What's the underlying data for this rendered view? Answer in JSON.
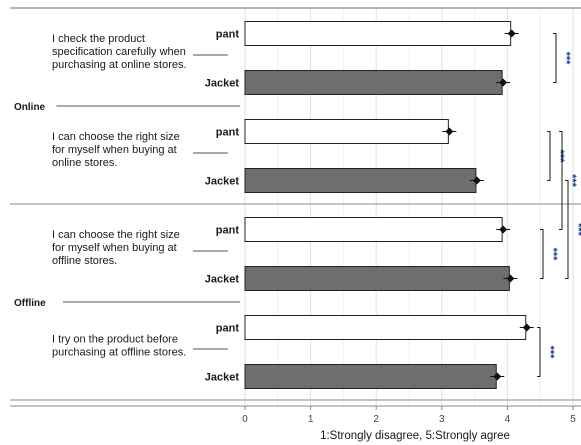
{
  "chart_data": {
    "type": "bar",
    "orientation": "horizontal",
    "xlabel": "1:Strongly disagree, 5:Strongly agree",
    "xlim": [
      0,
      5
    ],
    "xticks": [
      0,
      1,
      2,
      3,
      4,
      5
    ],
    "grid": true,
    "groups": [
      {
        "name": "Online",
        "questions": [
          {
            "text": [
              "I check the product",
              "specification carefully when",
              "purchasing at online stores."
            ],
            "bars": [
              {
                "category": "pant",
                "value": 4.05,
                "color": "#ffffff"
              },
              {
                "category": "Jacket",
                "value": 3.92,
                "color": "#6e6e6e"
              }
            ]
          },
          {
            "text": [
              "I can choose the right size",
              "for myself when buying at",
              "online stores."
            ],
            "bars": [
              {
                "category": "pant",
                "value": 3.1,
                "color": "#ffffff"
              },
              {
                "category": "Jacket",
                "value": 3.52,
                "color": "#6e6e6e"
              }
            ]
          }
        ]
      },
      {
        "name": "Offline",
        "questions": [
          {
            "text": [
              "I can choose the right size",
              "for myself when buying at",
              "offline stores."
            ],
            "bars": [
              {
                "category": "pant",
                "value": 3.92,
                "color": "#ffffff"
              },
              {
                "category": "Jacket",
                "value": 4.03,
                "color": "#6e6e6e"
              }
            ]
          },
          {
            "text": [
              "I try on the product before",
              "purchasing at offline stores."
            ],
            "bars": [
              {
                "category": "pant",
                "value": 4.28,
                "color": "#ffffff"
              },
              {
                "category": "Jacket",
                "value": 3.83,
                "color": "#6e6e6e"
              }
            ]
          }
        ]
      }
    ],
    "significance": [
      {
        "label": "***",
        "from": [
          0,
          0
        ],
        "to": [
          0,
          1
        ]
      },
      {
        "label": "***",
        "from": [
          1,
          0
        ],
        "to": [
          1,
          1
        ]
      },
      {
        "label": "***",
        "from": [
          2,
          0
        ],
        "to": [
          2,
          1
        ]
      },
      {
        "label": "***",
        "from": [
          3,
          0
        ],
        "to": [
          3,
          1
        ]
      },
      {
        "label": "***",
        "from": [
          1,
          0
        ],
        "to": [
          2,
          0
        ]
      },
      {
        "label": "***",
        "from": [
          1,
          1
        ],
        "to": [
          2,
          1
        ]
      }
    ]
  }
}
